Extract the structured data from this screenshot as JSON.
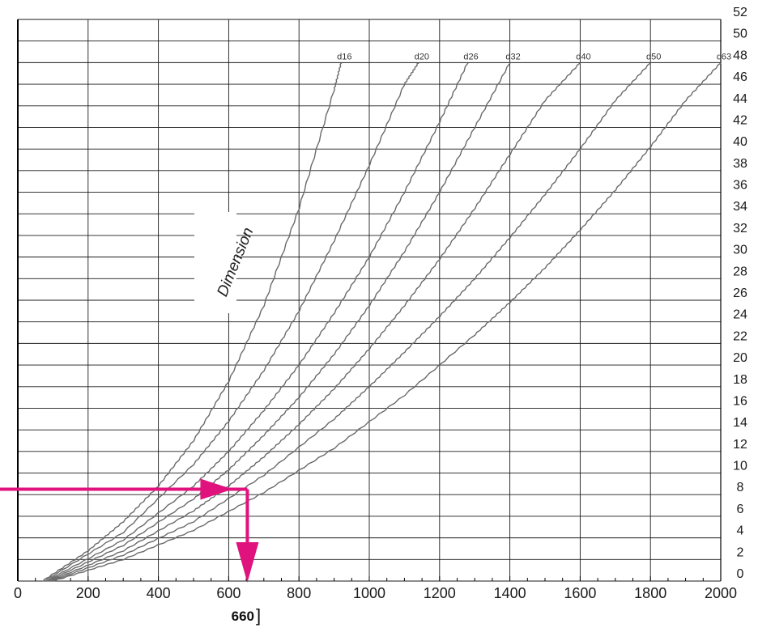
{
  "chart_data": {
    "type": "line",
    "title": "",
    "xlabel": "",
    "ylabel": "",
    "xlim": [
      0,
      2000
    ],
    "ylim": [
      0,
      52
    ],
    "x_ticks": [
      0,
      200,
      400,
      600,
      800,
      1000,
      1200,
      1400,
      1600,
      1800,
      2000
    ],
    "y_ticks": [
      0,
      2,
      4,
      6,
      8,
      10,
      12,
      14,
      16,
      18,
      20,
      22,
      24,
      26,
      28,
      30,
      32,
      34,
      36,
      38,
      40,
      42,
      44,
      46,
      48,
      50,
      52
    ],
    "grid": true,
    "series_group_label": "Dimension",
    "series": [
      {
        "name": "d16",
        "x": [
          70,
          200,
          300,
          400,
          500,
          600,
          700,
          800,
          900,
          920
        ],
        "y": [
          0,
          2.8,
          5.5,
          8.8,
          13,
          18.5,
          25.5,
          34.5,
          45.5,
          48
        ]
      },
      {
        "name": "d20",
        "x": [
          75,
          300,
          500,
          600,
          700,
          800,
          900,
          1000,
          1100,
          1140
        ],
        "y": [
          0,
          4.5,
          10.8,
          14.8,
          19.5,
          25,
          31.5,
          38.5,
          46,
          48
        ]
      },
      {
        "name": "d26",
        "x": [
          80,
          300,
          500,
          600,
          700,
          800,
          900,
          1000,
          1100,
          1200,
          1280
        ],
        "y": [
          0,
          3.8,
          8.8,
          12,
          15.8,
          20,
          24.8,
          30,
          36,
          42.5,
          48
        ]
      },
      {
        "name": "d32",
        "x": [
          85,
          300,
          500,
          600,
          700,
          800,
          900,
          1000,
          1100,
          1200,
          1300,
          1400
        ],
        "y": [
          0,
          3.3,
          7.6,
          10.3,
          13.5,
          17,
          21,
          25.5,
          30.5,
          36,
          42,
          48
        ]
      },
      {
        "name": "d40",
        "x": [
          90,
          300,
          500,
          600,
          700,
          800,
          900,
          1000,
          1100,
          1200,
          1300,
          1400,
          1500,
          1600
        ],
        "y": [
          0,
          2.8,
          6.5,
          8.8,
          11.5,
          14.5,
          17.8,
          21.5,
          25.5,
          29.8,
          34.5,
          39.5,
          44.5,
          48
        ]
      },
      {
        "name": "d50",
        "x": [
          95,
          300,
          500,
          700,
          900,
          1000,
          1100,
          1200,
          1300,
          1400,
          1500,
          1600,
          1700,
          1800
        ],
        "y": [
          0,
          2.4,
          5.5,
          9.8,
          15,
          18,
          21.2,
          24.5,
          28,
          31.8,
          35.8,
          40,
          44.5,
          48
        ]
      },
      {
        "name": "d63",
        "x": [
          100,
          300,
          500,
          700,
          900,
          1100,
          1300,
          1400,
          1500,
          1600,
          1700,
          1800,
          1900,
          2000
        ],
        "y": [
          0,
          2,
          4.7,
          8.2,
          12.3,
          17.2,
          22.8,
          25.8,
          29,
          32.5,
          36.2,
          40.2,
          44.5,
          48
        ]
      }
    ],
    "annotation": {
      "reading_label": "660",
      "reading_bracket": "]",
      "from_y": 8.5,
      "at_x": 660,
      "color": "#e0127d"
    }
  },
  "colors": {
    "grid": "#1a1a1a",
    "curve": "#6a6a6a",
    "arrow": "#e0127d"
  }
}
